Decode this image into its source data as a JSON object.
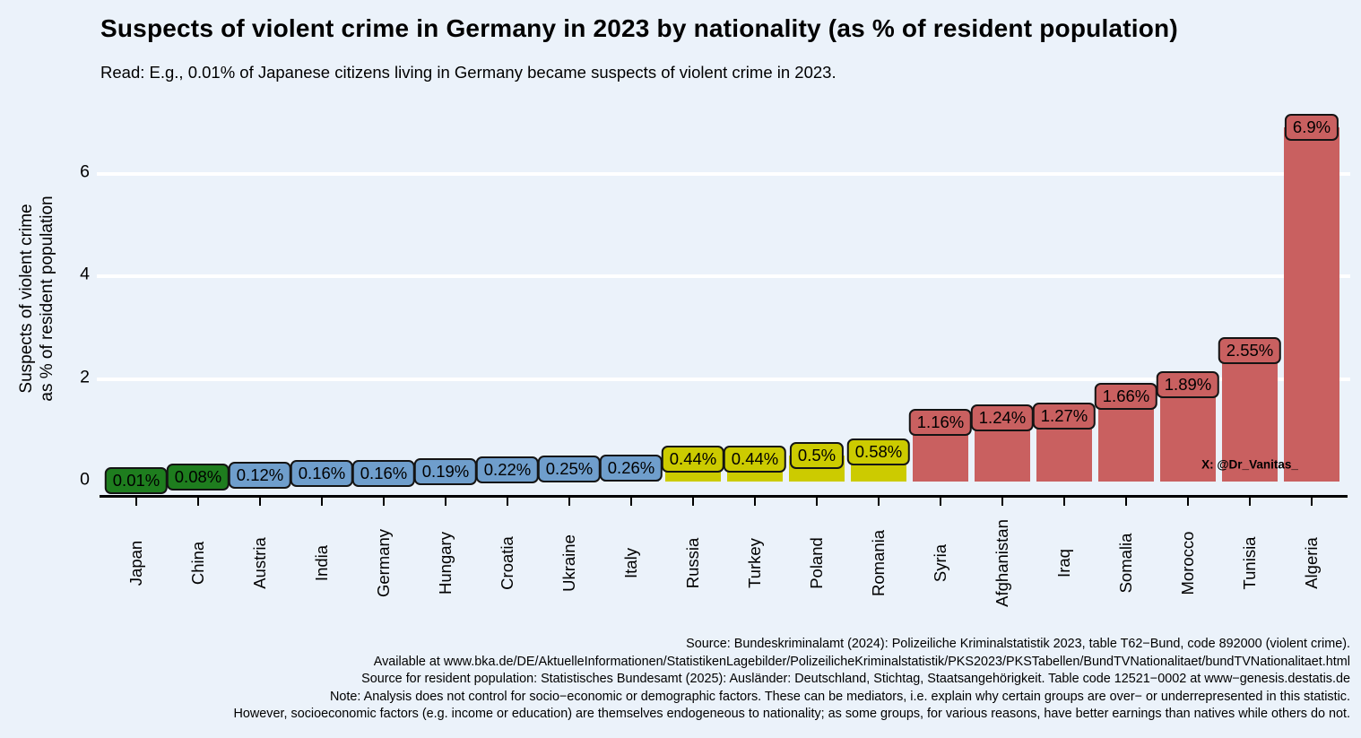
{
  "header": {
    "title": "Suspects of violent crime in Germany in 2023 by nationality (as % of resident population)",
    "subtitle": "Read: E.g., 0.01% of Japanese citizens living in Germany became suspects of violent crime in 2023."
  },
  "chart_data": {
    "type": "bar",
    "title": "Suspects of violent crime in Germany in 2023 by nationality (as % of resident population)",
    "categories": [
      "Japan",
      "China",
      "Austria",
      "India",
      "Germany",
      "Hungary",
      "Croatia",
      "Ukraine",
      "Italy",
      "Russia",
      "Turkey",
      "Poland",
      "Romania",
      "Syria",
      "Afghanistan",
      "Iraq",
      "Somalia",
      "Morocco",
      "Tunisia",
      "Algeria"
    ],
    "values": [
      0.01,
      0.08,
      0.12,
      0.16,
      0.16,
      0.19,
      0.22,
      0.25,
      0.26,
      0.44,
      0.44,
      0.5,
      0.58,
      1.16,
      1.24,
      1.27,
      1.66,
      1.89,
      2.55,
      6.9
    ],
    "bar_labels": [
      "0.01%",
      "0.08%",
      "0.12%",
      "0.16%",
      "0.16%",
      "0.19%",
      "0.22%",
      "0.25%",
      "0.26%",
      "0.44%",
      "0.44%",
      "0.5%",
      "0.58%",
      "1.16%",
      "1.24%",
      "1.27%",
      "1.66%",
      "1.89%",
      "2.55%",
      "6.9%"
    ],
    "bar_groups": [
      "green",
      "green",
      "blue",
      "blue",
      "blue",
      "blue",
      "blue",
      "blue",
      "blue",
      "yellow",
      "yellow",
      "yellow",
      "yellow",
      "red",
      "red",
      "red",
      "red",
      "red",
      "red",
      "red"
    ],
    "group_colors": {
      "green": "#1E7D1E",
      "blue": "#6F9ECC",
      "yellow": "#CCCB00",
      "red": "#C96060"
    },
    "xlabel": "",
    "ylabel": "Suspects of violent crime\nas % of resident population",
    "ylabel_lines": [
      "Suspects of violent crime",
      "as % of resident population"
    ],
    "yticks": [
      0,
      2,
      4,
      6
    ],
    "ylim": [
      0,
      7.35
    ],
    "grid": "horizontal-major-white",
    "legend_position": "none",
    "panel_background": "#EBF2FA"
  },
  "watermark": "X: @Dr_Vanitas_",
  "footer": {
    "lines": [
      "Source: Bundeskriminalamt (2024): Polizeiliche Kriminalstatistik 2023, table T62−Bund, code 892000 (violent crime).",
      "Available at www.bka.de/DE/AktuelleInformationen/StatistikenLagebilder/PolizeilicheKriminalstatistik/PKS2023/PKSTabellen/BundTVNationalitaet/bundTVNationalitaet.html",
      "Source for resident population: Statistisches Bundesamt (2025): Ausländer: Deutschland, Stichtag, Staatsangehörigkeit. Table code 12521−0002 at www−genesis.destatis.de",
      "Note: Analysis does not control for socio−economic or demographic factors. These can be mediators, i.e. explain why certain groups are over− or underrepresented in this statistic.",
      "However, socioeconomic factors (e.g. income or education) are themselves endogeneous to nationality; as some groups, for various reasons, have better earnings than natives while others do not."
    ]
  }
}
